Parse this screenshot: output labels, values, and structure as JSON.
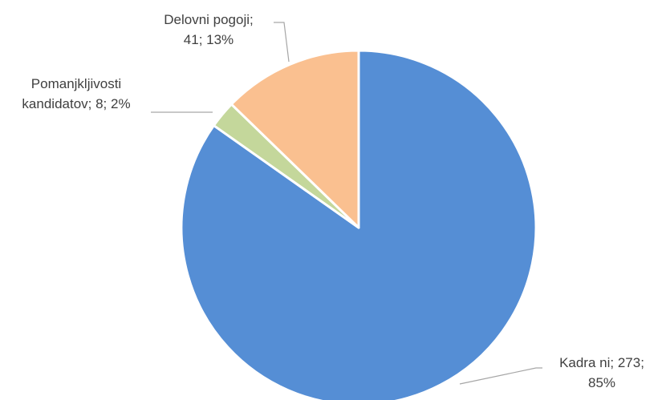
{
  "chart_data": {
    "type": "pie",
    "title": "",
    "start_angle_deg": 0,
    "direction": "clockwise",
    "slices": [
      {
        "name": "Kadra ni",
        "value": 273,
        "percent": "85%",
        "color": "#558ED5",
        "label_lines": [
          "Kadra ni; 273;",
          "85%"
        ]
      },
      {
        "name": "Pomanjkljivosti kandidatov",
        "value": 8,
        "percent": "2%",
        "color": "#C4D79B",
        "label_lines": [
          "Pomanjkljivosti",
          "kandidatov; 8; 2%"
        ]
      },
      {
        "name": "Delovni pogoji",
        "value": 41,
        "percent": "13%",
        "color": "#FAC090",
        "label_lines": [
          "Delovni pogoji;",
          "41; 13%"
        ]
      }
    ],
    "border_color": "#ffffff",
    "leader_line_color": "#A6A6A6"
  }
}
